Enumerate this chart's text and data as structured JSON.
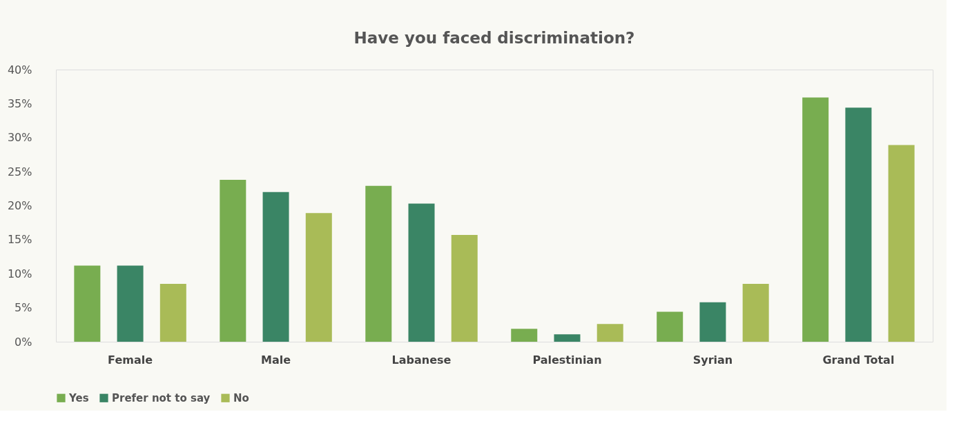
{
  "chart_data": {
    "type": "bar",
    "title": "Have you faced discrimination?",
    "categories": [
      "Female",
      "Male",
      "Labanese",
      "Palestinian",
      "Syrian",
      "Grand Total"
    ],
    "series": [
      {
        "name": "Yes",
        "color": "#78ad50",
        "values": [
          11.2,
          23.8,
          22.9,
          1.9,
          4.4,
          35.9
        ]
      },
      {
        "name": "Prefer not to say",
        "color": "#3a8565",
        "values": [
          11.2,
          22.0,
          20.3,
          1.1,
          5.8,
          34.4
        ]
      },
      {
        "name": "No",
        "color": "#a9bb57",
        "values": [
          8.5,
          18.9,
          15.7,
          2.6,
          8.5,
          28.9
        ]
      }
    ],
    "ylim": [
      0,
      40
    ],
    "yticks": [
      {
        "value": 0,
        "label": "0%"
      },
      {
        "value": 5,
        "label": "5%"
      },
      {
        "value": 10,
        "label": "10%"
      },
      {
        "value": 15,
        "label": "15%"
      },
      {
        "value": 20,
        "label": "20%"
      },
      {
        "value": 25,
        "label": "25%"
      },
      {
        "value": 30,
        "label": "30%"
      },
      {
        "value": 35,
        "label": "35%"
      },
      {
        "value": 40,
        "label": "40%"
      }
    ],
    "grid": false,
    "legend": "bottom"
  }
}
